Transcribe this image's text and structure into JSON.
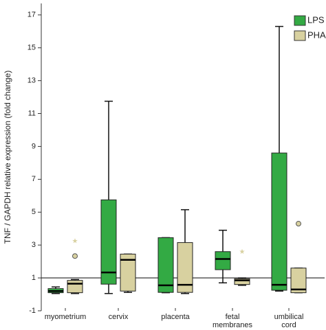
{
  "chart_data": {
    "type": "box",
    "y_label": "TNF / GAPDH relative expression (fold change)",
    "categories": [
      "myometrium",
      "cervix",
      "placenta",
      "fetal membranes",
      "umbilical cord"
    ],
    "series": [
      {
        "name": "LPS",
        "color": "#33aa44",
        "min": [
          0.05,
          0.05,
          0.1,
          0.7,
          0.2
        ],
        "q1": [
          0.1,
          0.62,
          0.12,
          1.5,
          0.25
        ],
        "median": [
          0.2,
          1.33,
          0.55,
          2.15,
          0.58
        ],
        "q3": [
          0.35,
          5.75,
          3.45,
          2.6,
          8.6
        ],
        "max": [
          0.45,
          11.75,
          3.45,
          3.9,
          16.3
        ],
        "outliers": [
          [],
          [],
          [],
          [],
          []
        ]
      },
      {
        "name": "PHA",
        "color": "#d8d1a0",
        "min": [
          0.05,
          0.12,
          0.05,
          0.55,
          0.1
        ],
        "q1": [
          0.1,
          0.2,
          0.12,
          0.6,
          0.1
        ],
        "median": [
          0.65,
          2.1,
          0.58,
          0.85,
          0.3
        ],
        "q3": [
          0.85,
          2.45,
          3.15,
          0.95,
          1.6
        ],
        "max": [
          0.9,
          2.45,
          5.15,
          1.0,
          1.6
        ],
        "outliers": [
          [
            {
              "value": 2.33,
              "marker": "circle"
            },
            {
              "value": 3.25,
              "marker": "star"
            }
          ],
          [],
          [],
          [
            {
              "value": 2.6,
              "marker": "star"
            }
          ],
          [
            {
              "value": 4.3,
              "marker": "circle"
            }
          ]
        ]
      }
    ],
    "ylim": [
      -1,
      17.7
    ],
    "yticks": [
      -1,
      1,
      3,
      5,
      7,
      9,
      11,
      13,
      15,
      17
    ],
    "reference_line": 1,
    "legend": "top-right"
  }
}
